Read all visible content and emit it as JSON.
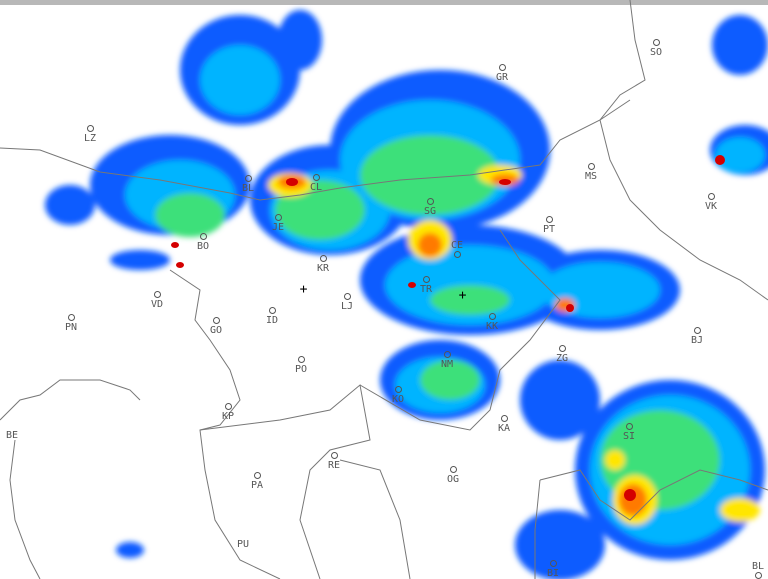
{
  "map": {
    "type": "weather radar reflectivity",
    "palette": {
      "light": "#0a5cff",
      "low": "#00b4ff",
      "mid": "#3ce07a",
      "midhigh": "#b8f000",
      "high": "#ffe600",
      "veryhigh": "#ff7a00",
      "extreme": "#d40000",
      "border": "#777777"
    },
    "stations": [
      "LZ",
      "BL",
      "CL",
      "JE",
      "KR",
      "BO",
      "VD",
      "PN",
      "GO",
      "ID",
      "LJ",
      "SG",
      "CE",
      "PT",
      "TR",
      "KK",
      "NM",
      "KO",
      "KA",
      "ZG",
      "SI",
      "BJ",
      "OG",
      "PO",
      "KP",
      "PA",
      "RE",
      "PU",
      "BE",
      "GR",
      "MS",
      "SO",
      "VK",
      "BL",
      "BI"
    ],
    "markers": [
      "crosshair-icon",
      "crosshair-icon"
    ]
  }
}
